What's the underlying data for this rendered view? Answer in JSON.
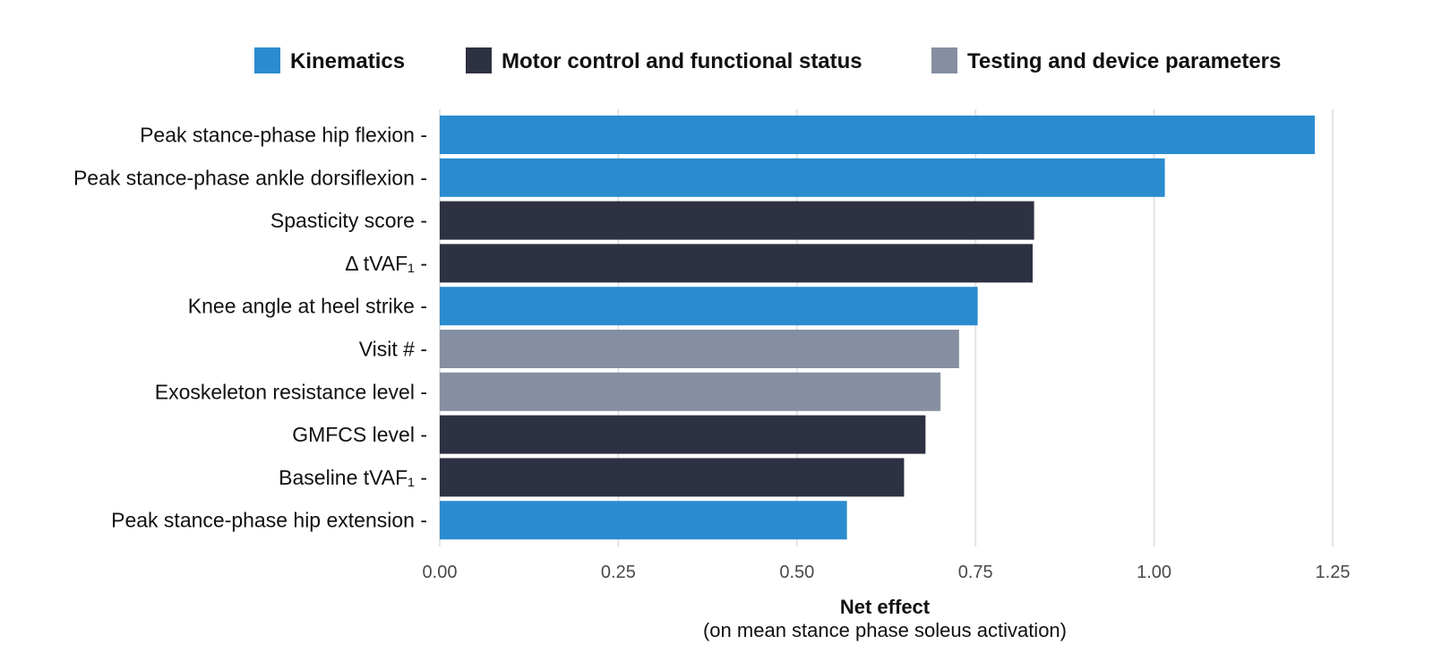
{
  "chart_data": {
    "type": "bar",
    "orientation": "horizontal",
    "categories": [
      "Peak stance-phase hip flexion",
      "Peak stance-phase ankle dorsiflexion",
      "Spasticity score",
      "Δ tVAF₁",
      "Knee angle at heel strike",
      "Visit #",
      "Exoskeleton resistance level",
      "GMFCS level",
      "Baseline tVAF₁",
      "Peak stance-phase hip extension"
    ],
    "values": [
      1.225,
      1.015,
      0.832,
      0.83,
      0.753,
      0.727,
      0.701,
      0.68,
      0.65,
      0.57
    ],
    "groups": [
      "Kinematics",
      "Kinematics",
      "Motor control and functional status",
      "Motor control and functional status",
      "Kinematics",
      "Testing and device parameters",
      "Testing and device parameters",
      "Motor control and functional status",
      "Motor control and functional status",
      "Kinematics"
    ],
    "legend": [
      {
        "name": "Kinematics",
        "color": "#2a8ccf"
      },
      {
        "name": "Motor control and functional status",
        "color": "#2e3142"
      },
      {
        "name": "Testing and device parameters",
        "color": "#858fa1"
      }
    ],
    "legend_position": "top",
    "xlabel": "Net effect",
    "xlabel_sub": "(on mean stance phase soleus activation)",
    "ylabel": "",
    "xlim": [
      0,
      1.25
    ],
    "xticks": [
      "0.00",
      "0.25",
      "0.50",
      "0.75",
      "1.00",
      "1.25"
    ],
    "xtick_values": [
      0,
      0.25,
      0.5,
      0.75,
      1.0,
      1.25
    ],
    "grid": "vertical"
  }
}
